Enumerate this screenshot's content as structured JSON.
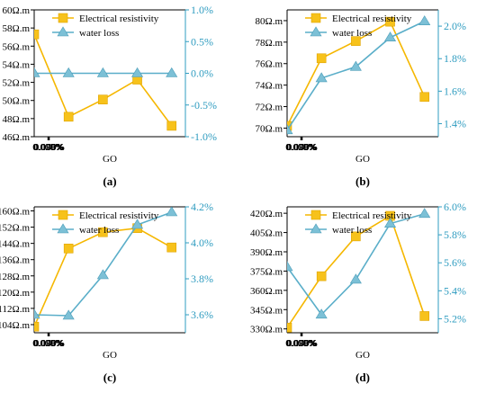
{
  "colors": {
    "resistivity": "#f5b700",
    "resistivity_marker": "#f7c21b",
    "water": "#5aaec9",
    "water_marker": "#7cc0d6",
    "right_axis": "#2f9cc0",
    "axis": "#000000"
  },
  "legend_marker_icons": [
    "square-marker-icon",
    "triangle-marker-icon"
  ],
  "chart_data": [
    {
      "type": "line",
      "panel_label": "(a)",
      "xlabel": "GO",
      "x_ticks": [
        "0.000%",
        "0.025%",
        "0.050%",
        "0.075%",
        "0.100%"
      ],
      "xlim": [
        -0.01,
        0.1
      ],
      "left_ticks": [
        "46Ω.m",
        "48Ω.m",
        "50Ω.m",
        "52Ω.m",
        "54Ω.m",
        "56Ω.m",
        "58Ω.m",
        "60Ω.m"
      ],
      "left_ylim": [
        46,
        60
      ],
      "right_ticks": [
        "-1.0%",
        "-0.5%",
        "0.0%",
        "0.5%",
        "1.0%"
      ],
      "right_ylim": [
        -1.0,
        1.0
      ],
      "legend": [
        "Electrical resistivity",
        "water loss"
      ],
      "legend_position": "top",
      "series": [
        {
          "name": "Electrical resistivity",
          "axis": "left",
          "marker": "square",
          "x": [
            -0.01,
            0.015,
            0.04,
            0.065,
            0.09
          ],
          "y": [
            57.3,
            48.2,
            50.1,
            52.3,
            47.2
          ]
        },
        {
          "name": "water loss",
          "axis": "right",
          "marker": "triangle",
          "x": [
            -0.01,
            0.015,
            0.04,
            0.065,
            0.09
          ],
          "y": [
            0.0,
            0.0,
            0.0,
            0.0,
            0.0
          ]
        }
      ]
    },
    {
      "type": "line",
      "panel_label": "(b)",
      "xlabel": "GO",
      "x_ticks": [
        "0.000%",
        "0.025%",
        "0.050%",
        "0.075%",
        "0.100%"
      ],
      "xlim": [
        -0.01,
        0.1
      ],
      "left_ticks": [
        "70Ω.m",
        "72Ω.m",
        "74Ω.m",
        "76Ω.m",
        "78Ω.m",
        "80Ω.m"
      ],
      "left_ylim": [
        69.2,
        81
      ],
      "right_ticks": [
        "1.4%",
        "1.6%",
        "1.8%",
        "2.0%"
      ],
      "right_ylim": [
        1.32,
        2.1
      ],
      "legend": [
        "Electrical resistivity",
        "water loss"
      ],
      "legend_position": "top",
      "series": [
        {
          "name": "Electrical resistivity",
          "axis": "left",
          "marker": "square",
          "x": [
            -0.01,
            0.015,
            0.04,
            0.065,
            0.09
          ],
          "y": [
            70.2,
            76.5,
            78.1,
            79.9,
            72.9
          ]
        },
        {
          "name": "water loss",
          "axis": "right",
          "marker": "triangle",
          "x": [
            -0.01,
            0.015,
            0.04,
            0.065,
            0.09
          ],
          "y": [
            1.36,
            1.68,
            1.75,
            1.93,
            2.03
          ]
        }
      ]
    },
    {
      "type": "line",
      "panel_label": "(c)",
      "xlabel": "GO",
      "x_ticks": [
        "0.000%",
        "0.025%",
        "0.050%",
        "0.075%",
        "0.100%"
      ],
      "xlim": [
        -0.01,
        0.1
      ],
      "left_ticks": [
        "104Ω.m",
        "112Ω.m",
        "120Ω.m",
        "128Ω.m",
        "136Ω.m",
        "144Ω.m",
        "152Ω.m",
        "160Ω.m"
      ],
      "left_ylim": [
        100,
        162
      ],
      "right_ticks": [
        "3.6%",
        "3.8%",
        "4.0%",
        "4.2%"
      ],
      "right_ylim": [
        3.5,
        4.2
      ],
      "legend": [
        "Electrical resistivity",
        "water loss"
      ],
      "legend_position": "top",
      "series": [
        {
          "name": "Electrical resistivity",
          "axis": "left",
          "marker": "square",
          "x": [
            -0.01,
            0.015,
            0.04,
            0.065,
            0.09
          ],
          "y": [
            103,
            141.5,
            149.5,
            151.5,
            142
          ]
        },
        {
          "name": "water loss",
          "axis": "right",
          "marker": "triangle",
          "x": [
            -0.01,
            0.015,
            0.04,
            0.065,
            0.09
          ],
          "y": [
            3.6,
            3.595,
            3.82,
            4.1,
            4.17
          ]
        }
      ]
    },
    {
      "type": "line",
      "panel_label": "(d)",
      "xlabel": "GO",
      "x_ticks": [
        "0.000%",
        "0.025%",
        "0.050%",
        "0.075%",
        "0.100%"
      ],
      "xlim": [
        -0.01,
        0.1
      ],
      "left_ticks": [
        "330Ω.m",
        "345Ω.m",
        "360Ω.m",
        "375Ω.m",
        "390Ω.m",
        "405Ω.m",
        "420Ω.m"
      ],
      "left_ylim": [
        327,
        425
      ],
      "right_ticks": [
        "5.2%",
        "5.4%",
        "5.6%",
        "5.8%",
        "6.0%"
      ],
      "right_ylim": [
        5.1,
        6.0
      ],
      "legend": [
        "Electrical resistivity",
        "water loss"
      ],
      "legend_position": "top",
      "series": [
        {
          "name": "Electrical resistivity",
          "axis": "left",
          "marker": "square",
          "x": [
            -0.01,
            0.015,
            0.04,
            0.065,
            0.09
          ],
          "y": [
            331,
            371,
            402,
            418,
            340
          ]
        },
        {
          "name": "water loss",
          "axis": "right",
          "marker": "triangle",
          "x": [
            -0.01,
            0.015,
            0.04,
            0.065,
            0.09
          ],
          "y": [
            5.57,
            5.23,
            5.48,
            5.88,
            5.95
          ]
        }
      ]
    }
  ]
}
